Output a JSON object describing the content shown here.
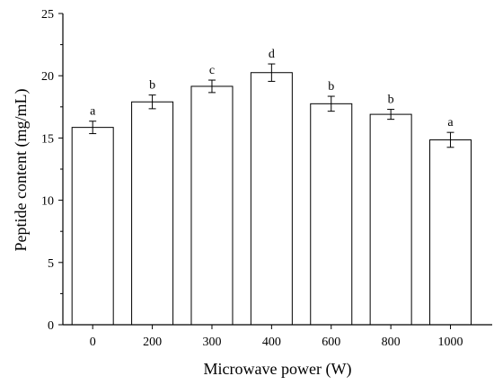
{
  "chart_data": {
    "type": "bar",
    "title": "",
    "xlabel": "Microwave power (W)",
    "ylabel": "Peptide content (mg/mL)",
    "categories": [
      "0",
      "200",
      "300",
      "400",
      "600",
      "800",
      "1000"
    ],
    "values": [
      15.85,
      17.9,
      19.15,
      20.25,
      17.75,
      16.9,
      14.85
    ],
    "errors": [
      0.5,
      0.55,
      0.5,
      0.7,
      0.6,
      0.4,
      0.6
    ],
    "significance_labels": [
      "a",
      "b",
      "c",
      "d",
      "b",
      "b",
      "a"
    ],
    "ylim": [
      0,
      25
    ],
    "yticks": [
      "0",
      "5",
      "10",
      "15",
      "20",
      "25"
    ],
    "grid": false,
    "colors": {
      "bar_fill": "#ffffff",
      "bar_stroke": "#000000"
    }
  }
}
